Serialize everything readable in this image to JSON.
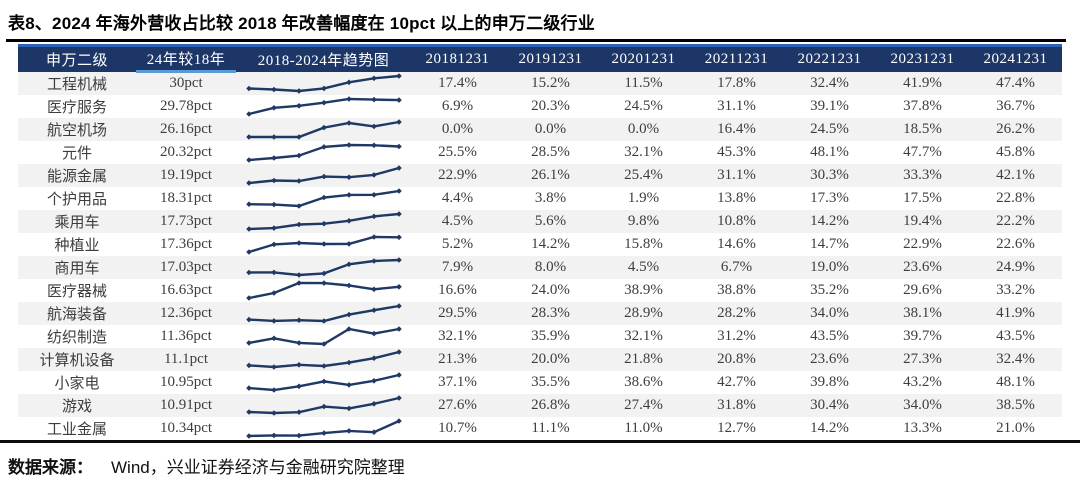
{
  "title": "表8、2024 年海外营收占比较 2018 年改善幅度在 10pct 以上的申万二级行业",
  "source_note": {
    "label": "数据来源：",
    "text": "Wind，兴业证券经济与金融研究院整理"
  },
  "colors": {
    "header_bg": "#1c3668",
    "header_text": "#ffffff",
    "header_top_border": "#2d62b8",
    "header_accent_underline": "#5b9bd5",
    "row_stripe": "#f2f2f2",
    "sparkline": "#1f3864",
    "rule": "#000000"
  },
  "chart_data": {
    "type": "table",
    "title": "2024 年海外营收占比较 2018 年改善幅度在 10pct 以上的申万二级行业",
    "columns": [
      "申万二级",
      "24年较18年",
      "2018-2024年趋势图",
      "20181231",
      "20191231",
      "20201231",
      "20211231",
      "20221231",
      "20231231",
      "20241231"
    ],
    "sparkline_x_years": [
      "2018",
      "2019",
      "2020",
      "2021",
      "2022",
      "2023",
      "2024"
    ],
    "value_unit": "%",
    "rows": [
      {
        "industry": "工程机械",
        "change": "30pct",
        "values": [
          17.4,
          15.2,
          11.5,
          17.8,
          32.4,
          41.9,
          47.4
        ]
      },
      {
        "industry": "医疗服务",
        "change": "29.78pct",
        "values": [
          6.9,
          20.3,
          24.5,
          31.1,
          39.1,
          37.8,
          36.7
        ]
      },
      {
        "industry": "航空机场",
        "change": "26.16pct",
        "values": [
          0.0,
          0.0,
          0.0,
          16.4,
          24.5,
          18.5,
          26.2
        ]
      },
      {
        "industry": "元件",
        "change": "20.32pct",
        "values": [
          25.5,
          28.5,
          32.1,
          45.3,
          48.1,
          47.7,
          45.8
        ]
      },
      {
        "industry": "能源金属",
        "change": "19.19pct",
        "values": [
          22.9,
          26.1,
          25.4,
          31.1,
          30.3,
          33.3,
          42.1
        ]
      },
      {
        "industry": "个护用品",
        "change": "18.31pct",
        "values": [
          4.4,
          3.8,
          1.9,
          13.8,
          17.3,
          17.5,
          22.8
        ]
      },
      {
        "industry": "乘用车",
        "change": "17.73pct",
        "values": [
          4.5,
          5.6,
          9.8,
          10.8,
          14.2,
          19.4,
          22.2
        ]
      },
      {
        "industry": "种植业",
        "change": "17.36pct",
        "values": [
          5.2,
          14.2,
          15.8,
          14.6,
          14.7,
          22.9,
          22.6
        ]
      },
      {
        "industry": "商用车",
        "change": "17.03pct",
        "values": [
          7.9,
          8.0,
          4.5,
          6.7,
          19.0,
          23.6,
          24.9
        ]
      },
      {
        "industry": "医疗器械",
        "change": "16.63pct",
        "values": [
          16.6,
          24.0,
          38.9,
          38.8,
          35.2,
          29.6,
          33.2
        ]
      },
      {
        "industry": "航海装备",
        "change": "12.36pct",
        "values": [
          29.5,
          28.3,
          28.9,
          28.2,
          34.0,
          38.1,
          41.9
        ]
      },
      {
        "industry": "纺织制造",
        "change": "11.36pct",
        "values": [
          32.1,
          35.9,
          32.1,
          31.2,
          43.5,
          39.7,
          43.5
        ]
      },
      {
        "industry": "计算机设备",
        "change": "11.1pct",
        "values": [
          21.3,
          20.0,
          21.8,
          20.8,
          23.6,
          27.3,
          32.4
        ]
      },
      {
        "industry": "小家电",
        "change": "10.95pct",
        "values": [
          37.1,
          35.5,
          38.6,
          42.7,
          39.8,
          43.2,
          48.1
        ]
      },
      {
        "industry": "游戏",
        "change": "10.91pct",
        "values": [
          27.6,
          26.8,
          27.4,
          31.8,
          30.4,
          34.0,
          38.5
        ]
      },
      {
        "industry": "工业金属",
        "change": "10.34pct",
        "values": [
          10.7,
          11.1,
          11.0,
          12.7,
          14.2,
          13.3,
          21.0
        ]
      }
    ]
  }
}
